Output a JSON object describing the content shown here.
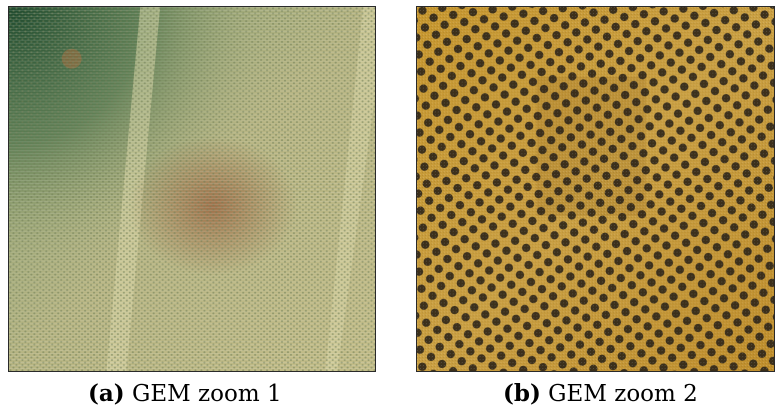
{
  "figure": {
    "panels": [
      {
        "tag": "(a)",
        "caption": "GEM zoom 1",
        "image_description_icon": "gem-foil-wide-photo-icon"
      },
      {
        "tag": "(b)",
        "caption": "GEM zoom 2",
        "image_description_icon": "gem-foil-closeup-photo-icon"
      }
    ],
    "colors": {
      "panel_a_base": "#b9b785",
      "panel_a_green": "#2f5a3a",
      "panel_a_stripe": "#d9d6a5",
      "panel_b_base": "#c9962c",
      "panel_b_hole": "#2b2418"
    }
  }
}
